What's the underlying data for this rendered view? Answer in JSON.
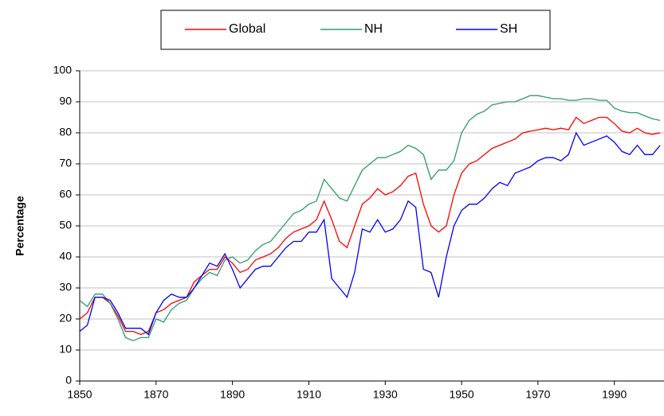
{
  "chart_data": {
    "type": "line",
    "y_label": "Percentage",
    "x": [
      1850,
      1852,
      1854,
      1856,
      1858,
      1860,
      1862,
      1864,
      1866,
      1868,
      1870,
      1872,
      1874,
      1876,
      1878,
      1880,
      1882,
      1884,
      1886,
      1888,
      1890,
      1892,
      1894,
      1896,
      1898,
      1900,
      1902,
      1904,
      1906,
      1908,
      1910,
      1912,
      1914,
      1916,
      1918,
      1920,
      1922,
      1924,
      1926,
      1928,
      1930,
      1932,
      1934,
      1936,
      1938,
      1940,
      1942,
      1944,
      1946,
      1948,
      1950,
      1952,
      1954,
      1956,
      1958,
      1960,
      1962,
      1964,
      1966,
      1968,
      1970,
      1972,
      1974,
      1976,
      1978,
      1980,
      1982,
      1984,
      1986,
      1988,
      1990,
      1992,
      1994,
      1996,
      1998,
      2000,
      2002
    ],
    "series": [
      {
        "name": "Global",
        "color": "#ff0000",
        "values": [
          20,
          22,
          27,
          27,
          25,
          21,
          16,
          16,
          15,
          16,
          22,
          23,
          25,
          26,
          27,
          32,
          34,
          36,
          36,
          40,
          38,
          35,
          36,
          39,
          40,
          41,
          43,
          46,
          48,
          49,
          50,
          52,
          58,
          52,
          45,
          43,
          50,
          57,
          59,
          62,
          60,
          61,
          63,
          66,
          67,
          57,
          50,
          48,
          50,
          60,
          67,
          70,
          71,
          73,
          75,
          76,
          77,
          78,
          80,
          80.5,
          81,
          81.5,
          81,
          81.5,
          81,
          85,
          83,
          84,
          85,
          85,
          83,
          80.5,
          80,
          81.5,
          80,
          79.5,
          80
        ]
      },
      {
        "name": "NH",
        "color": "#2e9b68",
        "values": [
          26,
          24,
          28,
          28,
          25,
          20,
          14,
          13,
          14,
          14,
          20,
          19,
          23,
          25,
          26,
          30,
          33,
          35,
          34,
          39,
          40,
          38,
          39,
          42,
          44,
          45,
          48,
          51,
          54,
          55,
          57,
          58,
          65,
          62,
          59,
          58,
          63,
          68,
          70,
          72,
          72,
          73,
          74,
          76,
          75,
          73,
          65,
          68,
          68,
          71,
          80,
          84,
          86,
          87,
          89,
          89.5,
          90,
          90,
          91,
          92,
          92,
          91.5,
          91,
          91,
          90.5,
          90.5,
          91,
          91,
          90.5,
          90.5,
          88,
          87,
          86.5,
          86.5,
          85.5,
          84.5,
          84
        ]
      },
      {
        "name": "SH",
        "color": "#0000ff",
        "values": [
          16,
          18,
          27,
          27,
          26,
          22,
          17,
          17,
          17,
          15,
          22,
          26,
          28,
          27,
          27,
          30,
          34,
          38,
          37,
          41,
          36,
          30,
          33,
          36,
          37,
          37,
          40,
          43,
          45,
          45,
          48,
          48,
          52,
          33,
          30,
          27,
          35,
          49,
          48,
          52,
          48,
          49,
          52,
          58,
          56,
          36,
          35,
          27,
          40,
          50,
          55,
          57,
          57,
          59,
          62,
          64,
          63,
          67,
          68,
          69,
          71,
          72,
          72,
          71,
          73,
          80,
          76,
          77,
          78,
          79,
          77,
          74,
          73,
          76,
          73,
          73,
          76
        ]
      }
    ],
    "xlim": [
      1850,
      2003
    ],
    "xticks": [
      1850,
      1870,
      1890,
      1910,
      1930,
      1950,
      1970,
      1990
    ],
    "ylim": [
      0,
      100
    ],
    "yticks": [
      0,
      10,
      20,
      30,
      40,
      50,
      60,
      70,
      80,
      90,
      100
    ],
    "grid": true,
    "legend": "top"
  }
}
